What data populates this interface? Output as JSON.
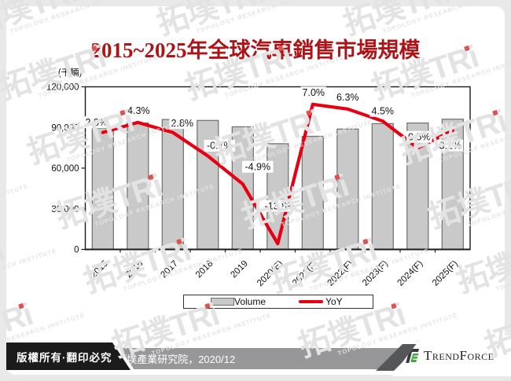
{
  "title": "2015~2025年全球汽車銷售市場規模",
  "watermark": {
    "brand": "拓墣TRi",
    "subtitle": "TOPOLOGY RESEARCH INSTITUTE"
  },
  "chart_data": {
    "type": "bar+line",
    "title": "2015~2025年全球汽車銷售市場規模",
    "y_axis_unit": "(千輛)",
    "categories": [
      "2015",
      "2016",
      "2017",
      "2018",
      "2019",
      "2020(E)",
      "2021(F)",
      "2022(F)",
      "2023(F)",
      "2024(F)",
      "2025(F)"
    ],
    "series": [
      {
        "name": "Volume",
        "type": "bar",
        "axis": "left",
        "values": [
          89500,
          93300,
          95900,
          95200,
          90500,
          78000,
          83500,
          88800,
          92800,
          93300,
          96100
        ]
      },
      {
        "name": "YoY",
        "type": "line",
        "axis": "right",
        "values": [
          2.8,
          4.3,
          2.8,
          -0.7,
          -4.9,
          -13.8,
          7.0,
          6.3,
          4.5,
          0.5,
          3.1
        ],
        "labels": [
          "2.8%",
          "4.3%",
          "2.8%",
          "-0.7%",
          "-4.9%",
          "-13.8%",
          "7.0%",
          "6.3%",
          "4.5%",
          "0.5%",
          "3.1%"
        ]
      }
    ],
    "ylim": [
      0,
      120000
    ],
    "y_ticks": [
      {
        "value": 0,
        "label": "0"
      },
      {
        "value": 30000,
        "label": "30,000"
      },
      {
        "value": 60000,
        "label": "60,000"
      },
      {
        "value": 90000,
        "label": "90,000"
      },
      {
        "value": 120000,
        "label": "120,000"
      }
    ],
    "y2lim": [
      -14.66,
      9.62
    ],
    "grid": false,
    "legend_position": "bottom"
  },
  "footer": {
    "copyright": "版權所有·翻印必究",
    "source": "Source：拓墣產業研究院，2020/12",
    "brand": "TrendForce"
  },
  "colors": {
    "bar_fill": "#c9c9c9",
    "bar_border": "#6e6e6e",
    "line_red": "#e60012",
    "title_red": "#ac1418",
    "footer_bar_gray": "#97979a",
    "footer_black": "#1b1b1b",
    "logo_green": "#45a941",
    "logo_dark": "#3a3a3c",
    "watermark_gray": "#e3e3e3",
    "watermark_dot_red": "#e05252"
  }
}
